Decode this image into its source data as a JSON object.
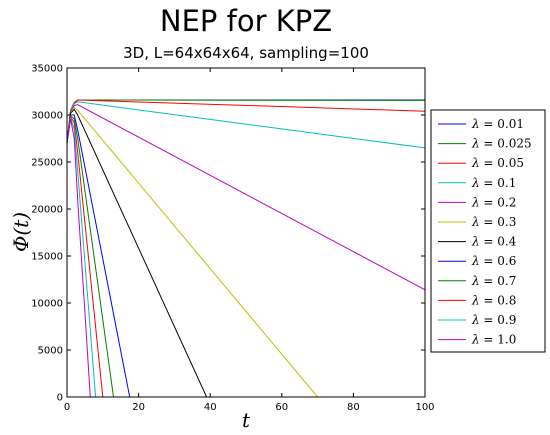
{
  "chart_data": {
    "type": "line",
    "title": "NEP for KPZ",
    "subtitle": "3D, L=64x64x64, sampling=100",
    "xlabel": "t",
    "ylabel_symbol": "Φ",
    "ylabel_arg": "t",
    "xlim": [
      0,
      100
    ],
    "ylim": [
      0,
      35000
    ],
    "xticks": [
      "0",
      "20",
      "40",
      "60",
      "80",
      "100"
    ],
    "yticks": [
      "0",
      "5000",
      "10000",
      "15000",
      "20000",
      "25000",
      "30000",
      "35000"
    ],
    "legend_position": "right",
    "legend_symbol": "λ",
    "series": [
      {
        "name": "0.01",
        "color": "#0000ff",
        "x": [
          0,
          1,
          2,
          3,
          100
        ],
        "y": [
          27000,
          30500,
          31300,
          31600,
          31600
        ]
      },
      {
        "name": "0.025",
        "color": "#008000",
        "x": [
          0,
          1,
          2,
          3,
          100
        ],
        "y": [
          27000,
          30500,
          31300,
          31600,
          31550
        ]
      },
      {
        "name": "0.05",
        "color": "#ff0000",
        "x": [
          0,
          1,
          2,
          3,
          100
        ],
        "y": [
          27000,
          30500,
          31300,
          31600,
          30400
        ]
      },
      {
        "name": "0.1",
        "color": "#00bfbf",
        "x": [
          0,
          1,
          2,
          3,
          100
        ],
        "y": [
          27000,
          30500,
          31200,
          31400,
          26500
        ]
      },
      {
        "name": "0.2",
        "color": "#bf00bf",
        "x": [
          0,
          1,
          2,
          3,
          100
        ],
        "y": [
          27000,
          30400,
          31000,
          31100,
          11400
        ]
      },
      {
        "name": "0.3",
        "color": "#bfbf00",
        "x": [
          0,
          1,
          2,
          3,
          70
        ],
        "y": [
          27000,
          30300,
          30800,
          30500,
          0
        ]
      },
      {
        "name": "0.4",
        "color": "#000000",
        "x": [
          0,
          1,
          2,
          3,
          39
        ],
        "y": [
          27000,
          30200,
          30600,
          30000,
          0
        ]
      },
      {
        "name": "0.6",
        "color": "#0000ff",
        "x": [
          0,
          1,
          2,
          3,
          17.5
        ],
        "y": [
          27000,
          30000,
          30000,
          28400,
          0
        ]
      },
      {
        "name": "0.7",
        "color": "#008000",
        "x": [
          0,
          1,
          2,
          3,
          13
        ],
        "y": [
          27000,
          29900,
          29600,
          27500,
          0
        ]
      },
      {
        "name": "0.8",
        "color": "#ff0000",
        "x": [
          0,
          1,
          2,
          3,
          10
        ],
        "y": [
          27000,
          29800,
          29200,
          26000,
          0
        ]
      },
      {
        "name": "0.9",
        "color": "#00bfbf",
        "x": [
          0,
          1,
          2,
          3,
          8
        ],
        "y": [
          27000,
          29700,
          28500,
          24000,
          0
        ]
      },
      {
        "name": "1.0",
        "color": "#bf00bf",
        "x": [
          0,
          1,
          2,
          3,
          6.5
        ],
        "y": [
          27000,
          29600,
          27500,
          21000,
          0
        ]
      }
    ]
  }
}
